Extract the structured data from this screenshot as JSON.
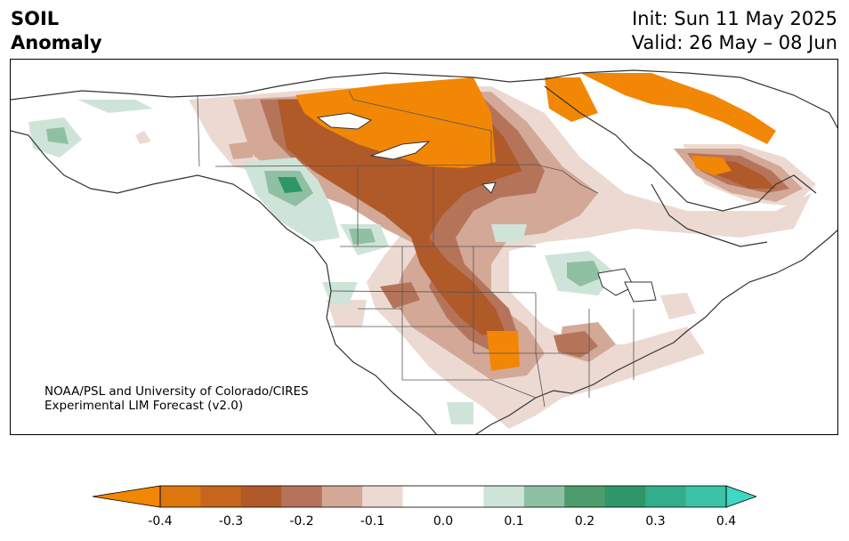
{
  "title": {
    "line1": "SOIL",
    "line2": "Anomaly",
    "init": "Init: Sun 11 May 2025",
    "valid": "Valid: 26 May – 08 Jun"
  },
  "credit": {
    "line1": "NOAA/PSL and University of Colorado/CIRES",
    "line2": "Experimental LIM Forecast (v2.0)"
  },
  "colorbar": {
    "colors": [
      "#f28705",
      "#dc760e",
      "#c6661c",
      "#b05a2a",
      "#b5745a",
      "#d3a896",
      "#ecdad2",
      "#ffffff",
      "#ffffff",
      "#cfe4d8",
      "#8fc0a4",
      "#4c9c6c",
      "#2f9669",
      "#33ae8c",
      "#3cc2a6",
      "#3ed8c4"
    ],
    "ticks": [
      "-0.4",
      "-0.3",
      "-0.2",
      "-0.1",
      "0.0",
      "0.1",
      "0.2",
      "0.3",
      "0.4"
    ],
    "tick_values": [
      -0.4,
      -0.3,
      -0.2,
      -0.1,
      0.0,
      0.1,
      0.2,
      0.3,
      0.4
    ],
    "min": -0.4,
    "max": 0.4,
    "extend": "both"
  }
}
